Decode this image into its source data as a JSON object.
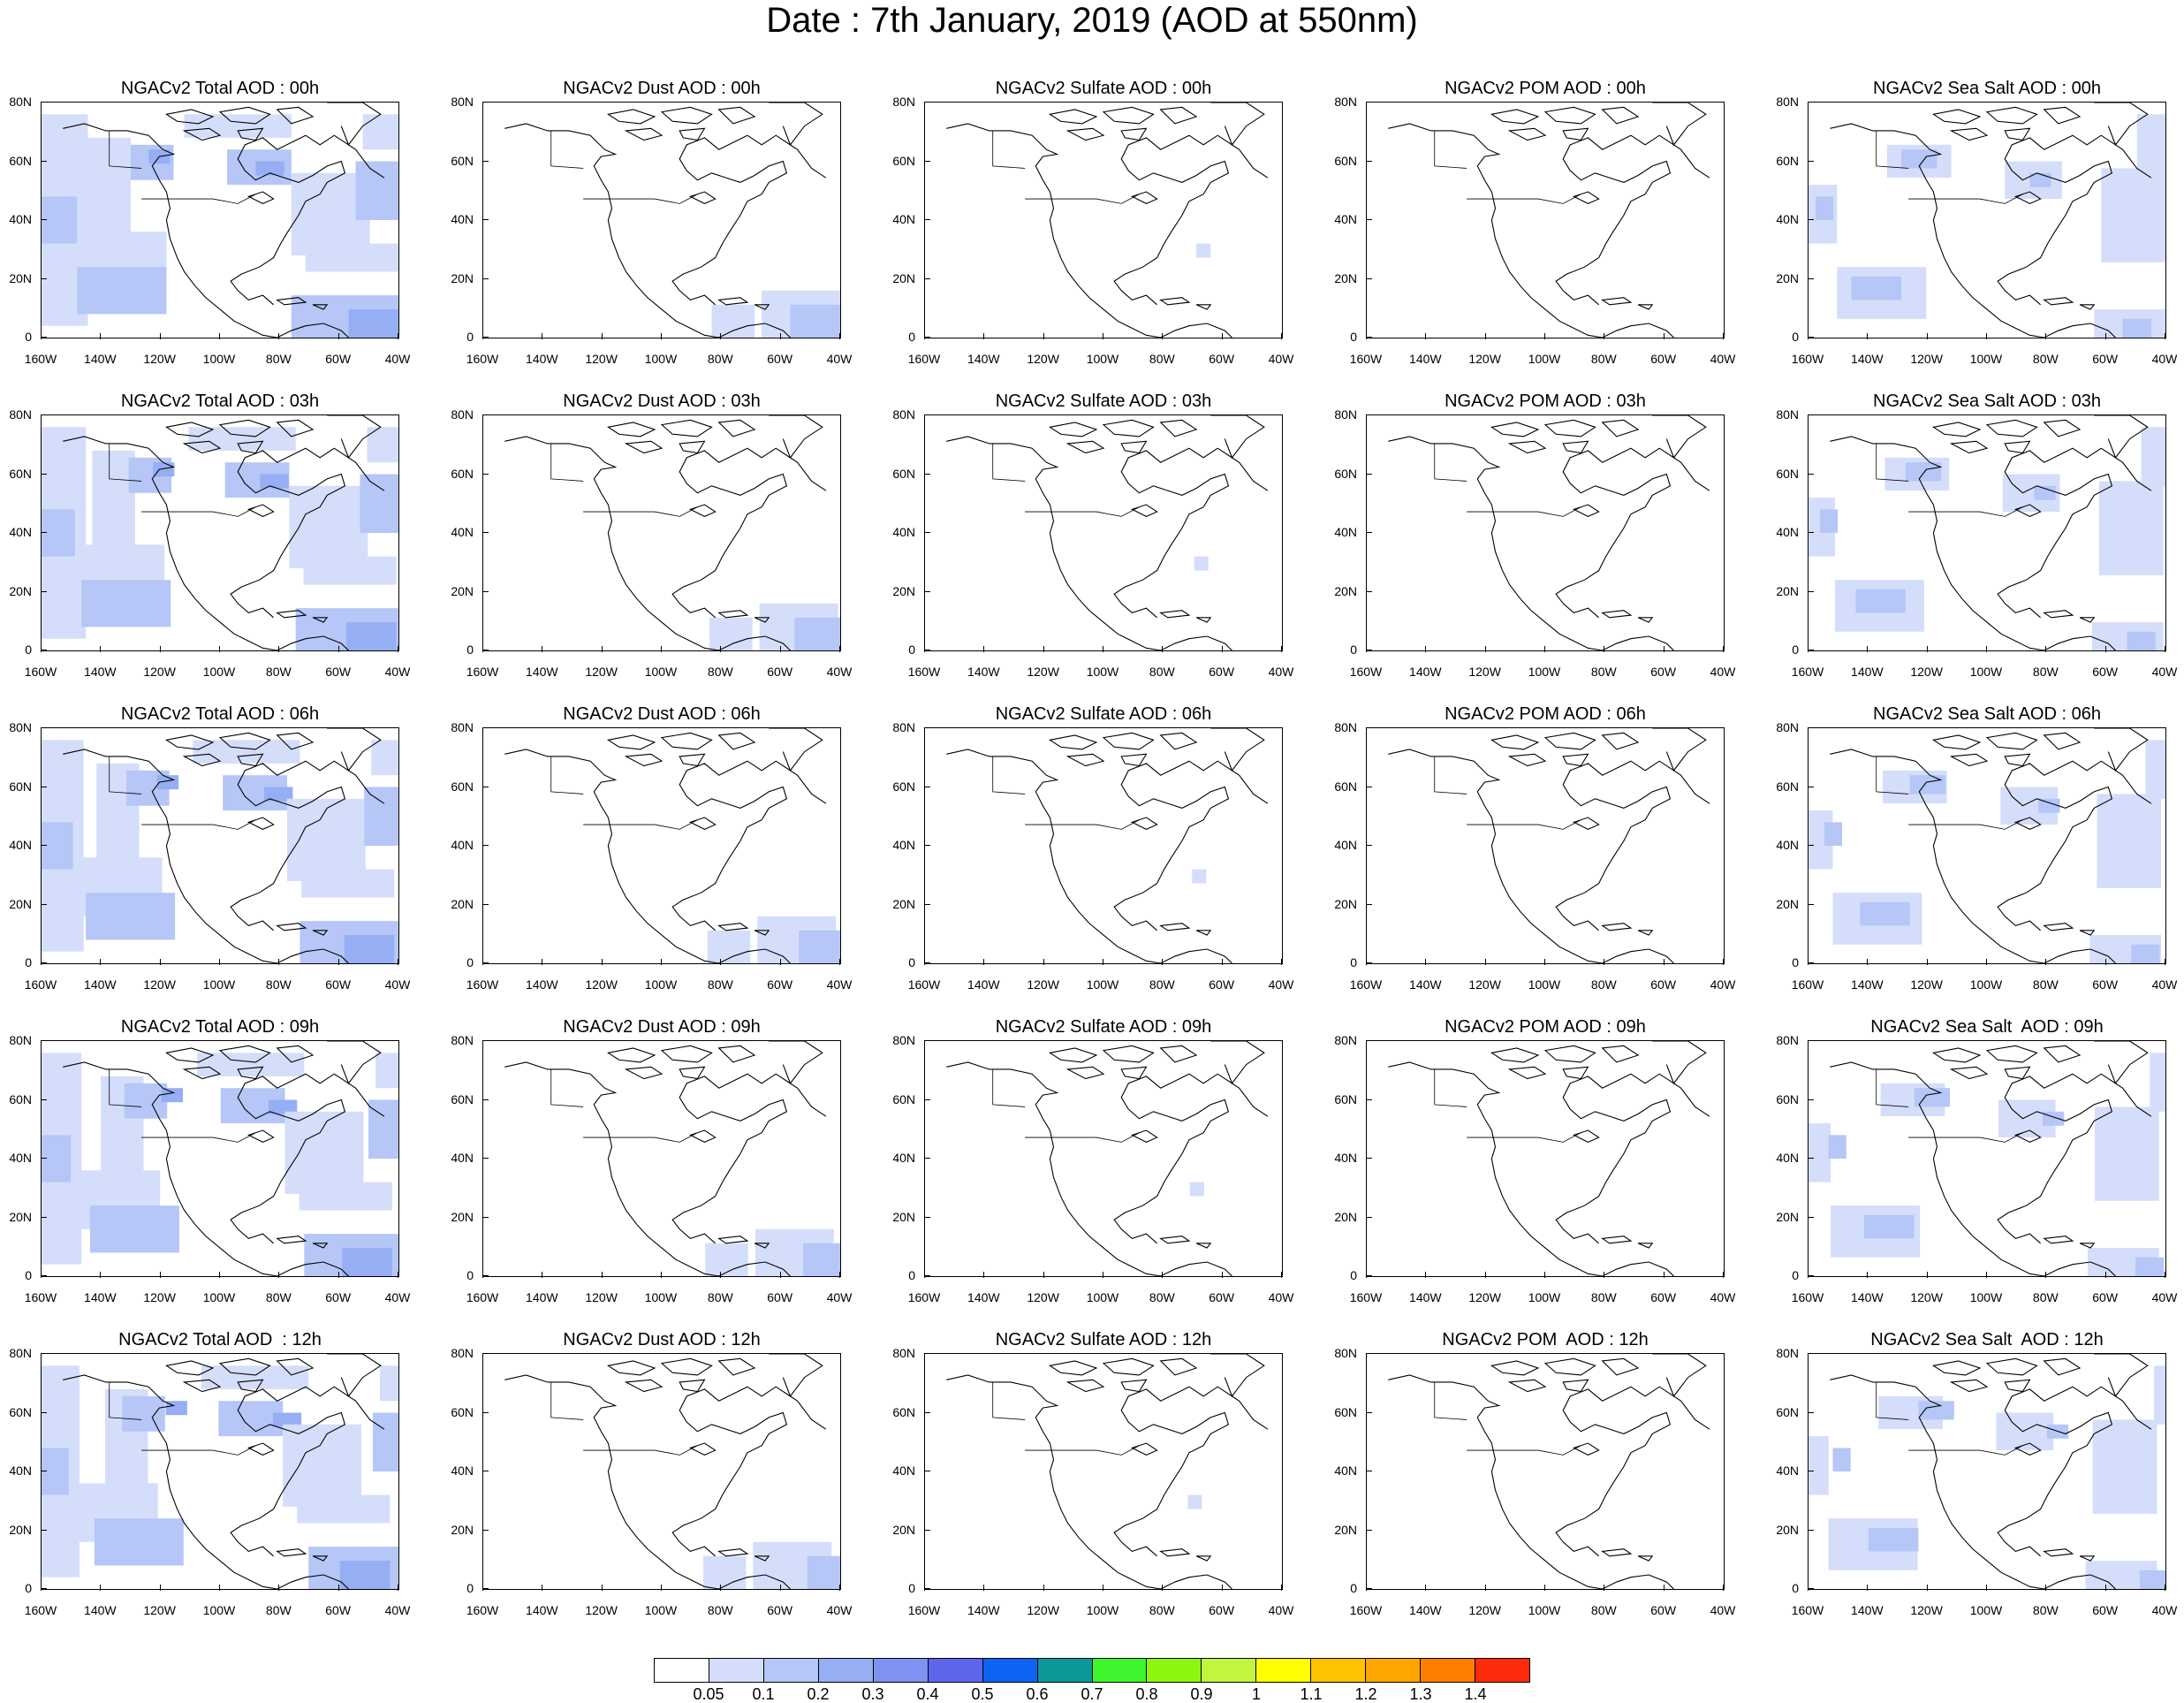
{
  "title": "Date : 7th January, 2019 (AOD at 550nm)",
  "rows": [
    {
      "panels": [
        "NGACv2 Total AOD : 00h",
        "NGACv2 Dust AOD : 00h",
        "NGACv2 Sulfate AOD : 00h",
        "NGACv2 POM AOD : 00h",
        "NGACv2 Sea Salt AOD : 00h"
      ]
    },
    {
      "panels": [
        "NGACv2 Total AOD : 03h",
        "NGACv2 Dust AOD : 03h",
        "NGACv2 Sulfate AOD : 03h",
        "NGACv2 POM AOD : 03h",
        "NGACv2 Sea Salt AOD : 03h"
      ]
    },
    {
      "panels": [
        "NGACv2 Total AOD : 06h",
        "NGACv2 Dust AOD : 06h",
        "NGACv2 Sulfate AOD : 06h",
        "NGACv2 POM AOD : 06h",
        "NGACv2 Sea Salt AOD : 06h"
      ]
    },
    {
      "panels": [
        "NGACv2 Total AOD : 09h",
        "NGACv2 Dust AOD : 09h",
        "NGACv2 Sulfate AOD : 09h",
        "NGACv2 POM AOD : 09h",
        "NGACv2 Sea Salt  AOD : 09h"
      ]
    },
    {
      "panels": [
        "NGACv2 Total AOD  : 12h",
        "NGACv2 Dust AOD : 12h",
        "NGACv2 Sulfate AOD : 12h",
        "NGACv2 POM  AOD : 12h",
        "NGACv2 Sea Salt  AOD : 12h"
      ]
    }
  ],
  "y_ticks": [
    "80N",
    "60N",
    "40N",
    "20N",
    "0"
  ],
  "x_ticks": [
    "160W",
    "140W",
    "120W",
    "100W",
    "80W",
    "60W",
    "40W"
  ],
  "colorbar": {
    "colors": [
      "#ffffff",
      "#d4defa",
      "#b5c6f7",
      "#96aef4",
      "#7f92f1",
      "#5e66ee",
      "#0d63f5",
      "#0c9898",
      "#3ff52d",
      "#8ef511",
      "#c3f53e",
      "#ffff00",
      "#ffc300",
      "#ffa500",
      "#ff7e00",
      "#ff2a0a"
    ],
    "labels": [
      "0.05",
      "0.1",
      "0.2",
      "0.3",
      "0.4",
      "0.5",
      "0.6",
      "0.7",
      "0.8",
      "0.9",
      "1",
      "1.1",
      "1.2",
      "1.3",
      "1.4"
    ]
  },
  "panel_types": [
    "total",
    "dust",
    "sulfate",
    "pom",
    "seasalt"
  ]
}
